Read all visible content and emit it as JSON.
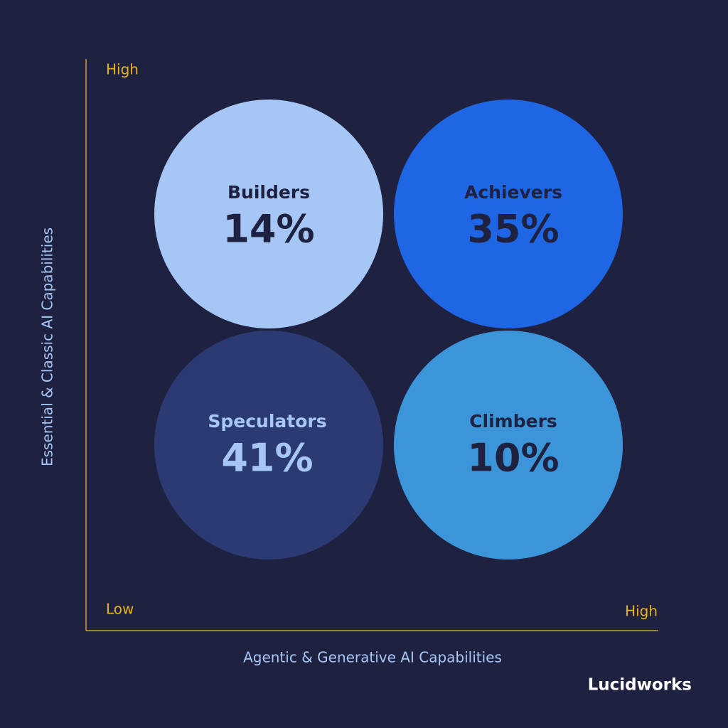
{
  "axes": {
    "y_high": "High",
    "origin": "Low",
    "x_high": "High",
    "y_label": "Essential & Classic AI Capabilities",
    "x_label": "Agentic & Generative AI Capabilities"
  },
  "quadrants": [
    {
      "name": "Builders",
      "value": "14%"
    },
    {
      "name": "Achievers",
      "value": "35%"
    },
    {
      "name": "Speculators",
      "value": "41%"
    },
    {
      "name": "Climbers",
      "value": "10%"
    }
  ],
  "brand": "Lucidworks"
}
